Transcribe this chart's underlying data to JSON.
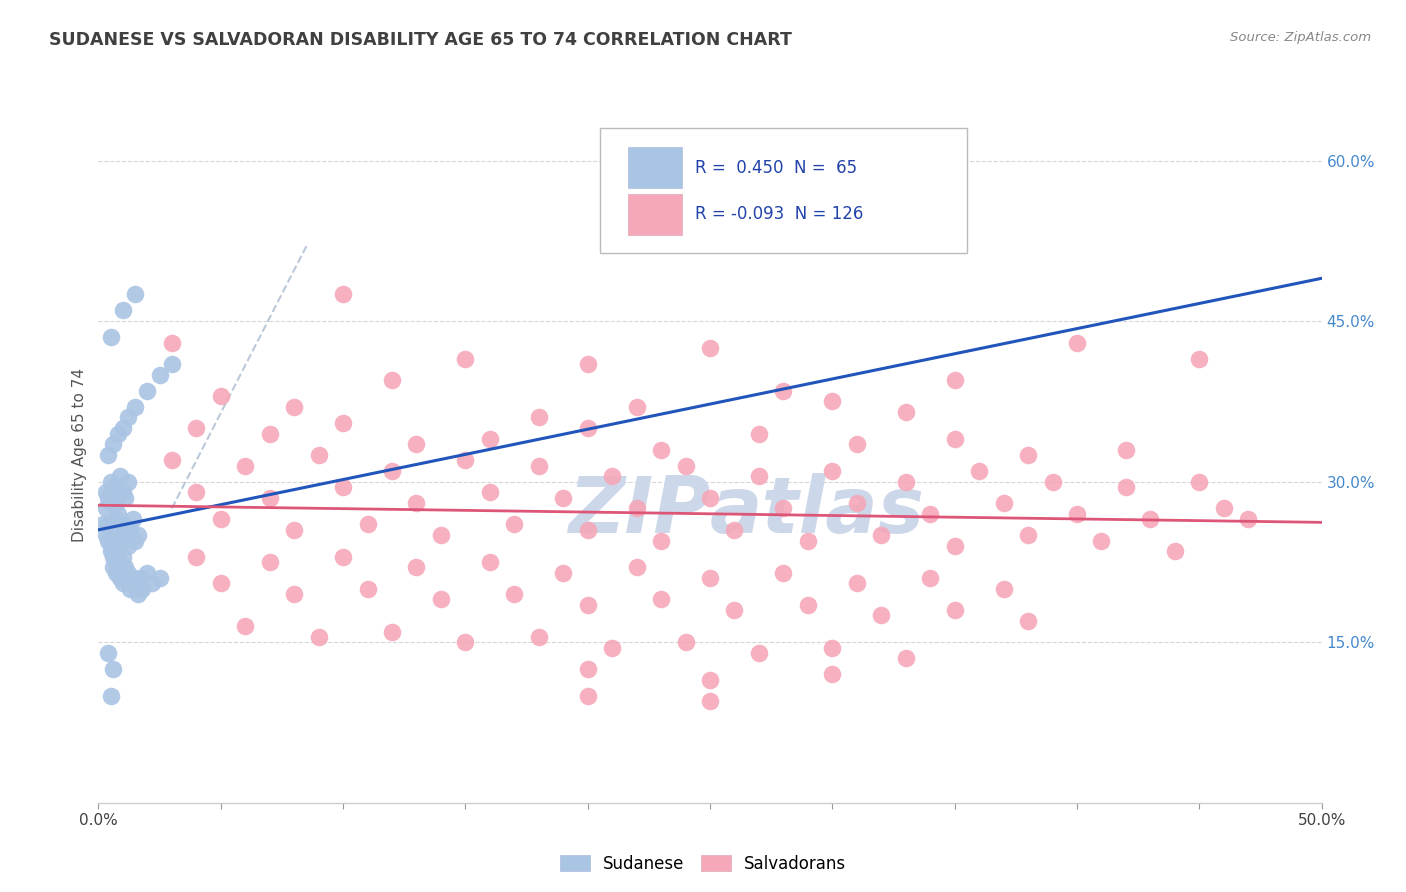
{
  "title": "SUDANESE VS SALVADORAN DISABILITY AGE 65 TO 74 CORRELATION CHART",
  "source": "Source: ZipAtlas.com",
  "ylabel": "Disability Age 65 to 74",
  "xlim": [
    0.0,
    50.0
  ],
  "ylim": [
    0.0,
    65.0
  ],
  "yticks": [
    15.0,
    30.0,
    45.0,
    60.0
  ],
  "sudanese_color": "#aac4e4",
  "salvadoran_color": "#f5a8b8",
  "line_blue": "#2255bb",
  "line_pink": "#dd5577",
  "line_dashed_color": "#aabbd0",
  "background_color": "#ffffff",
  "grid_color": "#cccccc",
  "title_color": "#404040",
  "right_tick_color": "#4488cc",
  "watermark_color": "#ccd8ea",
  "blue_line_x": [
    0.0,
    50.0
  ],
  "blue_line_y": [
    25.5,
    49.0
  ],
  "dash_line_x": [
    0.0,
    50.0
  ],
  "dash_line_y": [
    25.5,
    49.0
  ],
  "pink_line_x": [
    0.0,
    50.0
  ],
  "pink_line_y": [
    27.8,
    26.2
  ],
  "sudanese_points": [
    [
      0.3,
      27.5
    ],
    [
      0.4,
      26.0
    ],
    [
      0.5,
      28.0
    ],
    [
      0.6,
      25.0
    ],
    [
      0.7,
      26.5
    ],
    [
      0.8,
      27.0
    ],
    [
      0.9,
      25.5
    ],
    [
      1.0,
      26.0
    ],
    [
      0.5,
      24.0
    ],
    [
      0.6,
      23.0
    ],
    [
      0.7,
      22.5
    ],
    [
      0.8,
      23.5
    ],
    [
      0.9,
      24.5
    ],
    [
      1.0,
      23.0
    ],
    [
      1.1,
      25.0
    ],
    [
      1.2,
      24.0
    ],
    [
      1.3,
      25.5
    ],
    [
      1.4,
      26.5
    ],
    [
      1.5,
      24.5
    ],
    [
      1.6,
      25.0
    ],
    [
      0.3,
      29.0
    ],
    [
      0.4,
      28.5
    ],
    [
      0.5,
      30.0
    ],
    [
      0.6,
      29.5
    ],
    [
      0.7,
      28.0
    ],
    [
      0.8,
      29.5
    ],
    [
      0.9,
      30.5
    ],
    [
      1.0,
      29.0
    ],
    [
      1.1,
      28.5
    ],
    [
      1.2,
      30.0
    ],
    [
      0.2,
      26.0
    ],
    [
      0.3,
      25.0
    ],
    [
      0.4,
      24.5
    ],
    [
      0.5,
      23.5
    ],
    [
      0.6,
      22.0
    ],
    [
      0.7,
      21.5
    ],
    [
      0.8,
      22.5
    ],
    [
      0.9,
      21.0
    ],
    [
      1.0,
      20.5
    ],
    [
      1.1,
      22.0
    ],
    [
      1.2,
      21.5
    ],
    [
      1.3,
      20.0
    ],
    [
      1.4,
      21.0
    ],
    [
      1.5,
      20.5
    ],
    [
      1.6,
      19.5
    ],
    [
      1.7,
      21.0
    ],
    [
      1.8,
      20.0
    ],
    [
      2.0,
      21.5
    ],
    [
      2.2,
      20.5
    ],
    [
      2.5,
      21.0
    ],
    [
      0.4,
      32.5
    ],
    [
      0.6,
      33.5
    ],
    [
      0.8,
      34.5
    ],
    [
      1.0,
      35.0
    ],
    [
      1.2,
      36.0
    ],
    [
      1.5,
      37.0
    ],
    [
      2.0,
      38.5
    ],
    [
      2.5,
      40.0
    ],
    [
      3.0,
      41.0
    ],
    [
      0.5,
      43.5
    ],
    [
      1.0,
      46.0
    ],
    [
      1.5,
      47.5
    ],
    [
      0.4,
      14.0
    ],
    [
      0.6,
      12.5
    ],
    [
      0.5,
      10.0
    ]
  ],
  "salvadoran_points": [
    [
      3.0,
      43.0
    ],
    [
      10.0,
      47.5
    ],
    [
      15.0,
      41.5
    ],
    [
      20.0,
      41.0
    ],
    [
      25.0,
      42.5
    ],
    [
      30.0,
      37.5
    ],
    [
      35.0,
      39.5
    ],
    [
      40.0,
      43.0
    ],
    [
      45.0,
      41.5
    ],
    [
      5.0,
      38.0
    ],
    [
      8.0,
      37.0
    ],
    [
      12.0,
      39.5
    ],
    [
      18.0,
      36.0
    ],
    [
      22.0,
      37.0
    ],
    [
      28.0,
      38.5
    ],
    [
      33.0,
      36.5
    ],
    [
      4.0,
      35.0
    ],
    [
      7.0,
      34.5
    ],
    [
      10.0,
      35.5
    ],
    [
      13.0,
      33.5
    ],
    [
      16.0,
      34.0
    ],
    [
      20.0,
      35.0
    ],
    [
      23.0,
      33.0
    ],
    [
      27.0,
      34.5
    ],
    [
      31.0,
      33.5
    ],
    [
      35.0,
      34.0
    ],
    [
      38.0,
      32.5
    ],
    [
      42.0,
      33.0
    ],
    [
      3.0,
      32.0
    ],
    [
      6.0,
      31.5
    ],
    [
      9.0,
      32.5
    ],
    [
      12.0,
      31.0
    ],
    [
      15.0,
      32.0
    ],
    [
      18.0,
      31.5
    ],
    [
      21.0,
      30.5
    ],
    [
      24.0,
      31.5
    ],
    [
      27.0,
      30.5
    ],
    [
      30.0,
      31.0
    ],
    [
      33.0,
      30.0
    ],
    [
      36.0,
      31.0
    ],
    [
      39.0,
      30.0
    ],
    [
      42.0,
      29.5
    ],
    [
      45.0,
      30.0
    ],
    [
      47.0,
      26.5
    ],
    [
      4.0,
      29.0
    ],
    [
      7.0,
      28.5
    ],
    [
      10.0,
      29.5
    ],
    [
      13.0,
      28.0
    ],
    [
      16.0,
      29.0
    ],
    [
      19.0,
      28.5
    ],
    [
      22.0,
      27.5
    ],
    [
      25.0,
      28.5
    ],
    [
      28.0,
      27.5
    ],
    [
      31.0,
      28.0
    ],
    [
      34.0,
      27.0
    ],
    [
      37.0,
      28.0
    ],
    [
      40.0,
      27.0
    ],
    [
      43.0,
      26.5
    ],
    [
      46.0,
      27.5
    ],
    [
      5.0,
      26.5
    ],
    [
      8.0,
      25.5
    ],
    [
      11.0,
      26.0
    ],
    [
      14.0,
      25.0
    ],
    [
      17.0,
      26.0
    ],
    [
      20.0,
      25.5
    ],
    [
      23.0,
      24.5
    ],
    [
      26.0,
      25.5
    ],
    [
      29.0,
      24.5
    ],
    [
      32.0,
      25.0
    ],
    [
      35.0,
      24.0
    ],
    [
      38.0,
      25.0
    ],
    [
      41.0,
      24.5
    ],
    [
      44.0,
      23.5
    ],
    [
      4.0,
      23.0
    ],
    [
      7.0,
      22.5
    ],
    [
      10.0,
      23.0
    ],
    [
      13.0,
      22.0
    ],
    [
      16.0,
      22.5
    ],
    [
      19.0,
      21.5
    ],
    [
      22.0,
      22.0
    ],
    [
      25.0,
      21.0
    ],
    [
      28.0,
      21.5
    ],
    [
      31.0,
      20.5
    ],
    [
      34.0,
      21.0
    ],
    [
      37.0,
      20.0
    ],
    [
      5.0,
      20.5
    ],
    [
      8.0,
      19.5
    ],
    [
      11.0,
      20.0
    ],
    [
      14.0,
      19.0
    ],
    [
      17.0,
      19.5
    ],
    [
      20.0,
      18.5
    ],
    [
      23.0,
      19.0
    ],
    [
      26.0,
      18.0
    ],
    [
      29.0,
      18.5
    ],
    [
      32.0,
      17.5
    ],
    [
      35.0,
      18.0
    ],
    [
      38.0,
      17.0
    ],
    [
      6.0,
      16.5
    ],
    [
      9.0,
      15.5
    ],
    [
      12.0,
      16.0
    ],
    [
      15.0,
      15.0
    ],
    [
      18.0,
      15.5
    ],
    [
      21.0,
      14.5
    ],
    [
      24.0,
      15.0
    ],
    [
      27.0,
      14.0
    ],
    [
      30.0,
      14.5
    ],
    [
      33.0,
      13.5
    ],
    [
      20.0,
      12.5
    ],
    [
      25.0,
      11.5
    ],
    [
      30.0,
      12.0
    ],
    [
      20.0,
      10.0
    ],
    [
      25.0,
      9.5
    ]
  ]
}
